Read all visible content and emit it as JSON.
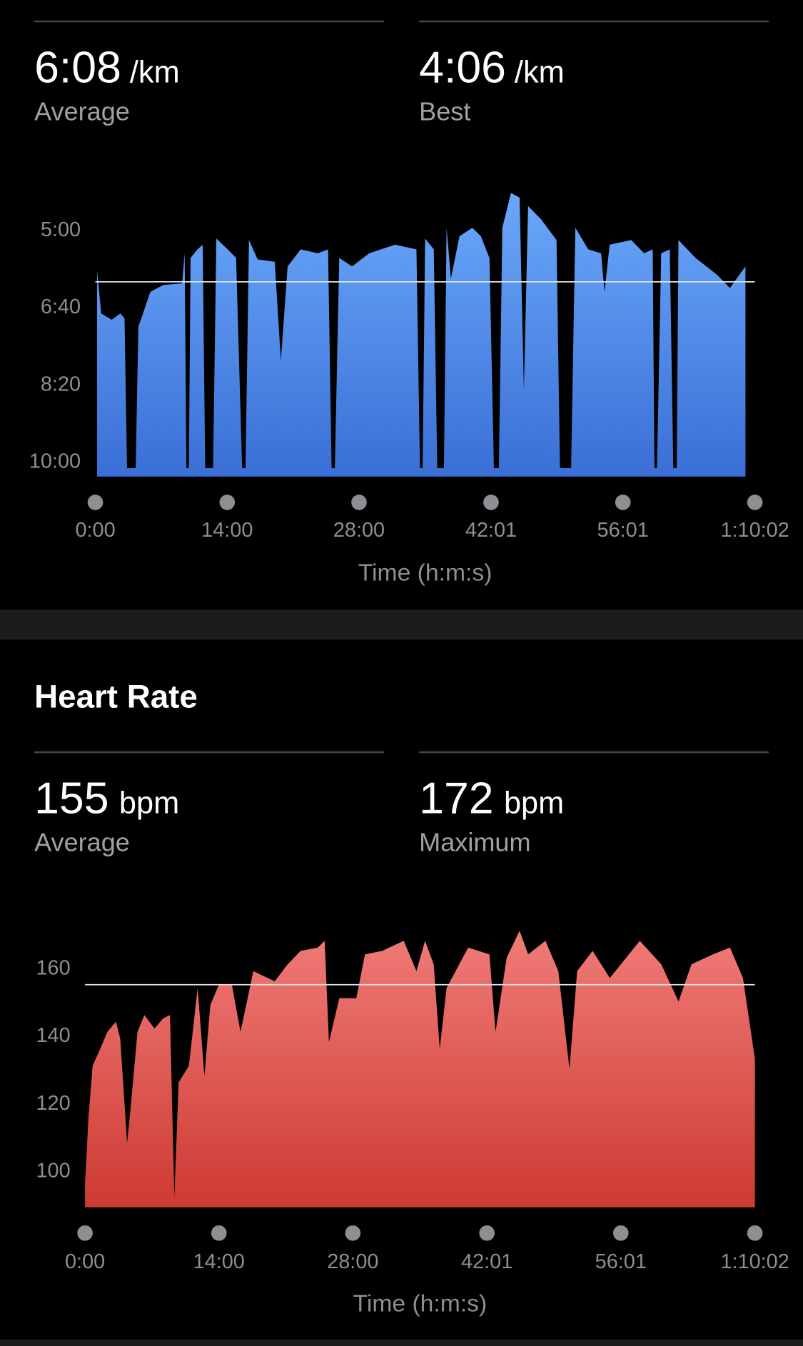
{
  "sections": [
    {
      "stats": [
        {
          "value": "6:08",
          "unit": "/km",
          "label": "Average"
        },
        {
          "value": "4:06",
          "unit": "/km",
          "label": "Best"
        }
      ]
    },
    {
      "title": "Heart Rate",
      "stats": [
        {
          "value": "155",
          "unit": "bpm",
          "label": "Average"
        },
        {
          "value": "172",
          "unit": "bpm",
          "label": "Maximum"
        }
      ]
    }
  ],
  "chart_data": [
    {
      "type": "area",
      "color": [
        "#6aa8fa",
        "#3a6fd6"
      ],
      "y_inverted": true,
      "reference_line": 368,
      "xlabel": "Time (h:m:s)",
      "xlim": [
        0,
        4202
      ],
      "xticks": [
        {
          "value": 0,
          "label": "0:00"
        },
        {
          "value": 840,
          "label": "14:00"
        },
        {
          "value": 1680,
          "label": "28:00"
        },
        {
          "value": 2521,
          "label": "42:01"
        },
        {
          "value": 3361,
          "label": "56:01"
        },
        {
          "value": 4202,
          "label": "1:10:02"
        }
      ],
      "ylim": [
        230,
        620
      ],
      "yticks": [
        {
          "value": 300,
          "label": "5:00"
        },
        {
          "value": 400,
          "label": "6:40"
        },
        {
          "value": 500,
          "label": "8:20"
        },
        {
          "value": 600,
          "label": "10:00"
        }
      ],
      "x": [
        11,
        38,
        104,
        159,
        186,
        202,
        257,
        274,
        295,
        350,
        432,
        553,
        569,
        580,
        596,
        607,
        651,
        684,
        700,
        750,
        771,
        843,
        897,
        935,
        957,
        979,
        1034,
        1143,
        1182,
        1225,
        1308,
        1417,
        1483,
        1505,
        1526,
        1554,
        1636,
        1745,
        1909,
        2046,
        2068,
        2085,
        2101,
        2156,
        2178,
        2221,
        2238,
        2265,
        2320,
        2402,
        2456,
        2511,
        2539,
        2571,
        2593,
        2648,
        2703,
        2730,
        2757,
        2839,
        2938,
        2960,
        3031,
        3058,
        3140,
        3222,
        3244,
        3277,
        3414,
        3496,
        3551,
        3562,
        3578,
        3605,
        3660,
        3682,
        3704,
        3715,
        3824,
        3961,
        4043,
        4142
      ],
      "values": [
        353,
        409,
        417,
        409,
        415,
        609,
        609,
        426,
        414,
        381,
        372,
        370,
        331,
        609,
        609,
        337,
        326,
        320,
        609,
        609,
        312,
        326,
        337,
        609,
        609,
        314,
        339,
        342,
        470,
        348,
        326,
        331,
        326,
        609,
        609,
        337,
        348,
        331,
        320,
        326,
        609,
        609,
        312,
        326,
        609,
        609,
        298,
        364,
        309,
        298,
        309,
        337,
        609,
        609,
        298,
        253,
        259,
        509,
        270,
        287,
        314,
        609,
        609,
        298,
        326,
        331,
        381,
        320,
        314,
        331,
        326,
        609,
        609,
        331,
        326,
        609,
        609,
        314,
        337,
        359,
        376,
        348
      ]
    },
    {
      "type": "area",
      "color": [
        "#f07b78",
        "#cd3a32"
      ],
      "reference_line": 155,
      "xlabel": "Time (h:m:s)",
      "xlim": [
        0,
        4202
      ],
      "xticks": [
        {
          "value": 0,
          "label": "0:00"
        },
        {
          "value": 840,
          "label": "14:00"
        },
        {
          "value": 1680,
          "label": "28:00"
        },
        {
          "value": 2521,
          "label": "42:01"
        },
        {
          "value": 3361,
          "label": "56:01"
        },
        {
          "value": 4202,
          "label": "1:10:02"
        }
      ],
      "ylim": [
        89,
        173
      ],
      "yticks": [
        100,
        120,
        140,
        160
      ],
      "x": [
        0,
        22,
        48,
        86,
        140,
        194,
        221,
        264,
        285,
        329,
        372,
        436,
        490,
        533,
        560,
        587,
        652,
        706,
        749,
        786,
        840,
        921,
        975,
        1056,
        1190,
        1271,
        1352,
        1460,
        1503,
        1530,
        1595,
        1702,
        1756,
        1864,
        1999,
        2079,
        2133,
        2187,
        2225,
        2268,
        2403,
        2537,
        2575,
        2645,
        2726,
        2780,
        2888,
        2969,
        3039,
        3087,
        3184,
        3292,
        3480,
        3615,
        3723,
        3804,
        3938,
        4046,
        4127,
        4202
      ],
      "values": [
        96,
        116,
        131,
        135,
        141,
        144,
        139,
        108,
        118,
        141,
        146,
        142,
        145,
        146,
        92,
        126,
        131,
        154,
        128,
        149,
        155,
        155,
        141,
        159,
        156,
        161,
        165,
        166,
        168,
        138,
        151,
        151,
        164,
        165,
        168,
        159,
        168,
        161,
        136,
        154,
        166,
        164,
        141,
        163,
        171,
        164,
        168,
        159,
        130,
        159,
        165,
        157,
        168,
        161,
        150,
        161,
        164,
        166,
        157,
        133
      ]
    }
  ]
}
